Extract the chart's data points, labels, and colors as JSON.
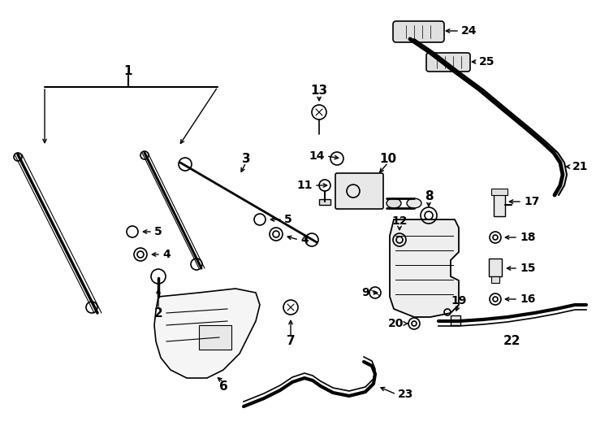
{
  "figsize": [
    7.34,
    5.4
  ],
  "dpi": 100,
  "bg": "#ffffff",
  "lc": "#000000"
}
